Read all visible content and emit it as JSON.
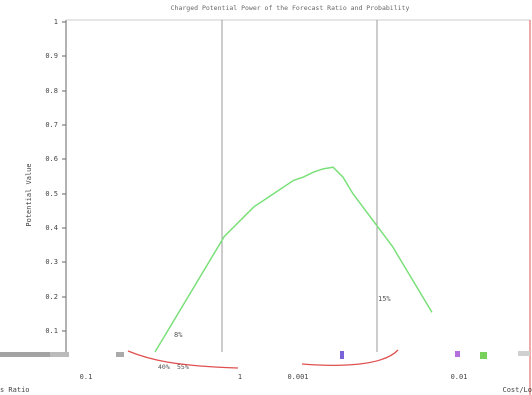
{
  "chart_data": {
    "type": "line",
    "title": "Charged Potential Power of the Forecast Ratio and Probability",
    "ylabel": "Potential Value",
    "xlabel_left": "s Ratio",
    "xlabel_right": "Cost/Lo",
    "ylim": [
      0,
      1
    ],
    "yticks": [
      "1",
      "0.9",
      "0.8",
      "0.7",
      "0.6",
      "0.5",
      "0.4",
      "0.3",
      "0.2",
      "0.1"
    ],
    "xticks": [
      "0.1",
      "1",
      "0.001",
      "0.01"
    ],
    "grid": true,
    "series": [
      {
        "x": [
          0,
          0.02,
          0.04,
          0.06,
          0.08,
          0.1,
          0.12,
          0.14,
          0.16,
          0.18,
          0.2,
          0.22,
          0.24,
          0.26,
          0.28,
          0.3,
          0.32,
          0.34,
          0.36,
          0.38,
          0.4,
          0.42,
          0.44,
          0.46,
          0.48,
          0.5,
          0.52,
          0.54,
          0.56
        ],
        "values": [
          0.0,
          0.05,
          0.1,
          0.15,
          0.2,
          0.25,
          0.3,
          0.35,
          0.38,
          0.41,
          0.44,
          0.46,
          0.48,
          0.5,
          0.52,
          0.53,
          0.545,
          0.555,
          0.56,
          0.53,
          0.48,
          0.44,
          0.4,
          0.36,
          0.32,
          0.27,
          0.22,
          0.17,
          0.12
        ]
      }
    ],
    "annotations": [
      "8%",
      "15%",
      "40%",
      "55%"
    ]
  },
  "colors": {
    "series": "#7ae07a",
    "axis": "#444444",
    "grid": "#9a9a9a",
    "red": "#e05050"
  }
}
